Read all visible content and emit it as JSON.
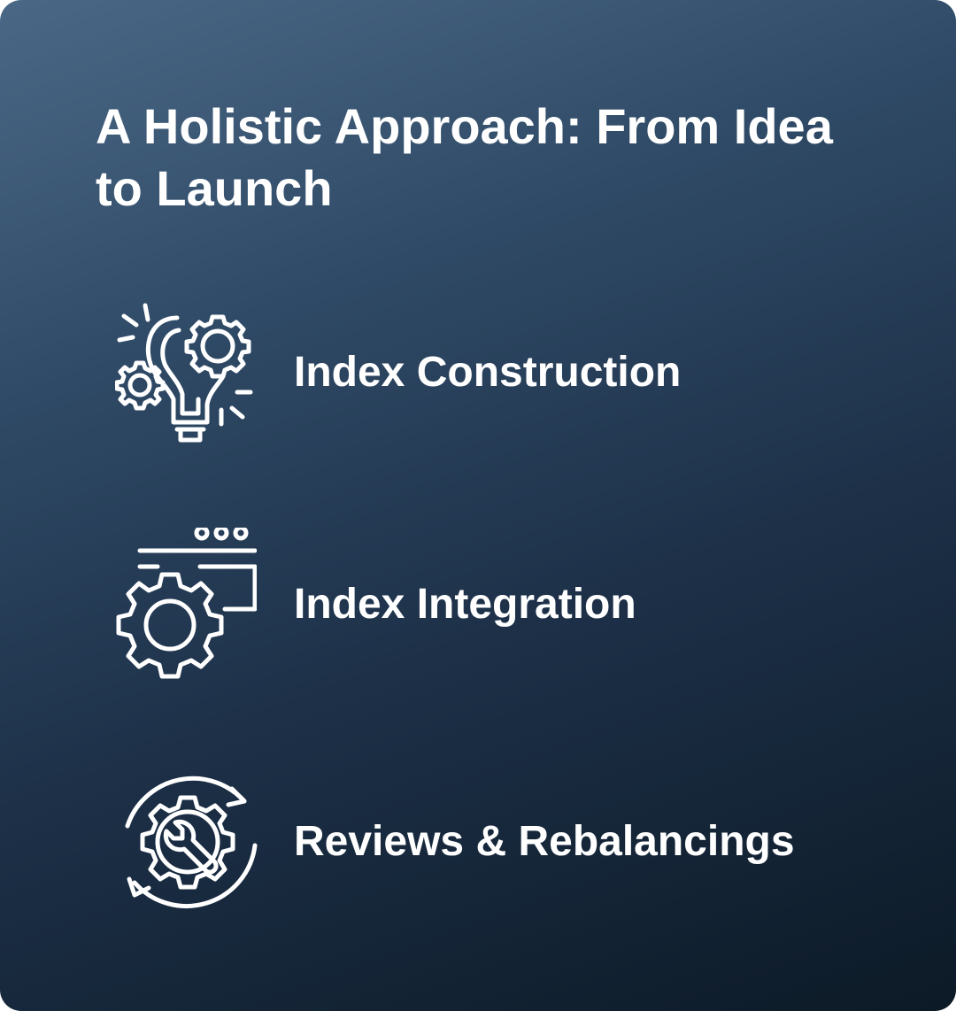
{
  "title": "A Holistic Approach: From Idea to Launch",
  "items": [
    {
      "label": "Index Construction",
      "icon": "lightbulb-gears-icon"
    },
    {
      "label": "Index Integration",
      "icon": "browser-gear-icon"
    },
    {
      "label": "Reviews & Rebalancings",
      "icon": "wrench-gear-cycle-icon"
    }
  ],
  "colors": {
    "gradient_start": "#4a6886",
    "gradient_end": "#0c1a26",
    "text": "#ffffff"
  }
}
